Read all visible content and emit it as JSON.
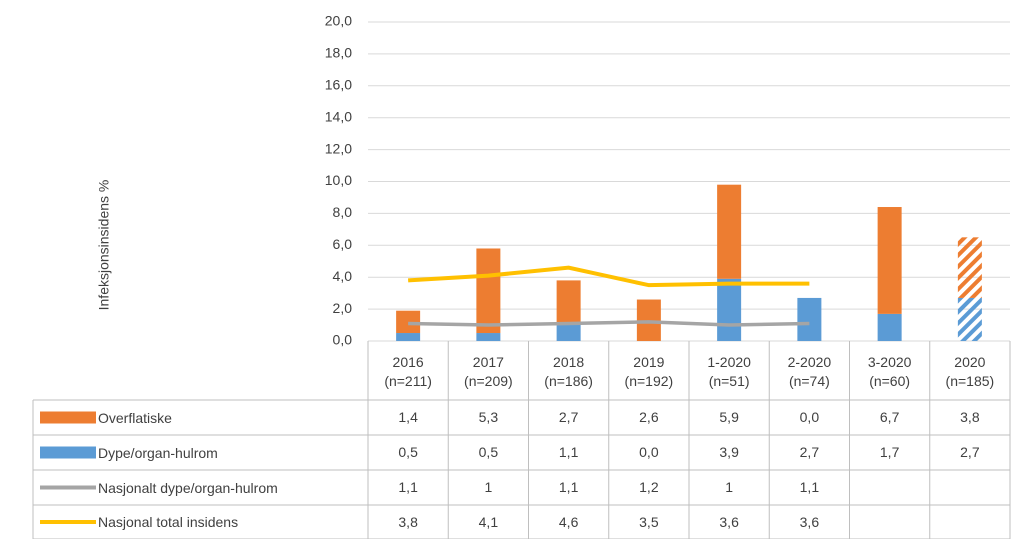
{
  "chart_data": {
    "type": "stacked_bar_line",
    "ylabel": "Infeksjonsinsidens %",
    "categories": [
      "2016\n(n=211)",
      "2017\n(n=209)",
      "2018\n(n=186)",
      "2019\n(n=192)",
      "1-2020\n(n=51)",
      "2-2020\n(n=74)",
      "3-2020\n(n=60)",
      "2020\n(n=185)"
    ],
    "hatched_index": 7,
    "ylim": [
      0,
      20
    ],
    "yticks": [
      {
        "value": 0,
        "label": "0,0"
      },
      {
        "value": 2,
        "label": "2,0"
      },
      {
        "value": 4,
        "label": "4,0"
      },
      {
        "value": 6,
        "label": "6,0"
      },
      {
        "value": 8,
        "label": "8,0"
      },
      {
        "value": 10,
        "label": "10,0"
      },
      {
        "value": 12,
        "label": "12,0"
      },
      {
        "value": 14,
        "label": "14,0"
      },
      {
        "value": 16,
        "label": "16,0"
      },
      {
        "value": 18,
        "label": "18,0"
      },
      {
        "value": 20,
        "label": "20,0"
      }
    ],
    "grid": true,
    "series": [
      {
        "name": "Overflatiske",
        "kind": "bar",
        "color": "#ed7d31",
        "values": [
          1.4,
          5.3,
          2.7,
          2.6,
          5.9,
          0.0,
          6.7,
          3.8
        ],
        "value_labels": [
          "1,4",
          "5,3",
          "2,7",
          "2,6",
          "5,9",
          "0,0",
          "6,7",
          "3,8"
        ]
      },
      {
        "name": "Dype/organ-hulrom",
        "kind": "bar",
        "color": "#5b9bd5",
        "values": [
          0.5,
          0.5,
          1.1,
          0.0,
          3.9,
          2.7,
          1.7,
          2.7
        ],
        "value_labels": [
          "0,5",
          "0,5",
          "1,1",
          "0,0",
          "3,9",
          "2,7",
          "1,7",
          "2,7"
        ]
      },
      {
        "name": "Nasjonalt dype/organ-hulrom",
        "kind": "line",
        "color": "#a5a5a5",
        "values": [
          1.1,
          1,
          1.1,
          1.2,
          1,
          1.1,
          null,
          null
        ],
        "value_labels": [
          "1,1",
          "1",
          "1,1",
          "1,2",
          "1",
          "1,1",
          null,
          null
        ]
      },
      {
        "name": "Nasjonal total insidens",
        "kind": "line",
        "color": "#ffc000",
        "values": [
          3.8,
          4.1,
          4.6,
          3.5,
          3.6,
          3.6,
          null,
          null
        ],
        "value_labels": [
          "3,8",
          "4,1",
          "4,6",
          "3,5",
          "3,6",
          "3,6",
          null,
          null
        ]
      }
    ]
  }
}
